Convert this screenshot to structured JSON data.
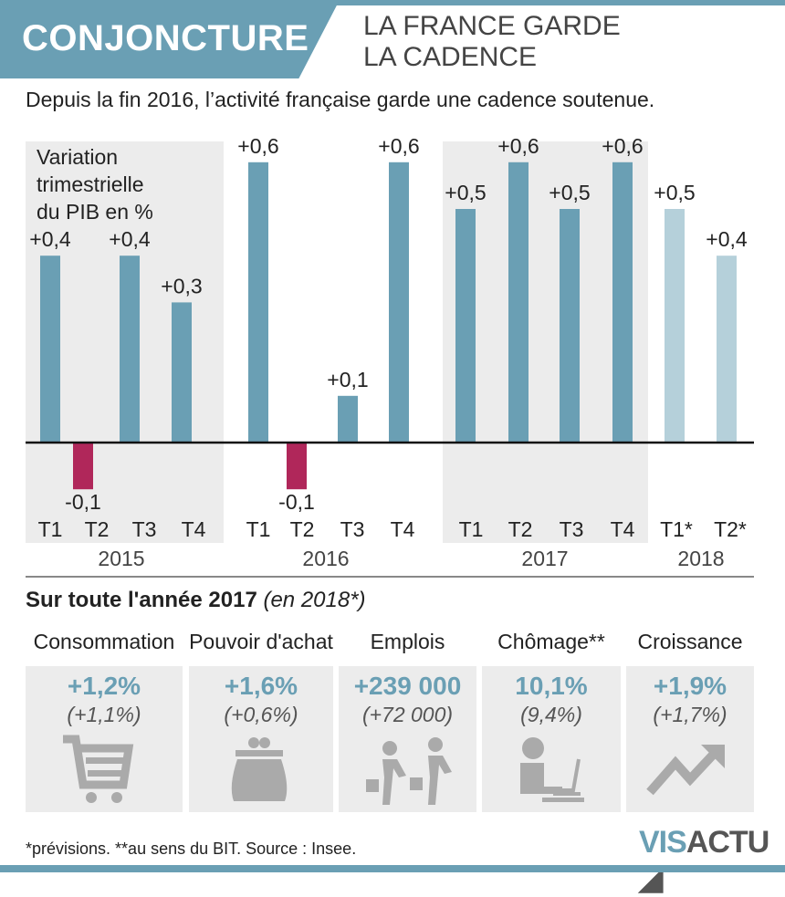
{
  "header": {
    "section": "CONJONCTURE",
    "title_line1": "LA FRANCE GARDE",
    "title_line2": "LA CADENCE",
    "subtitle": "Depuis la fin 2016, l’activité française garde une cadence soutenue."
  },
  "chart_data": {
    "type": "bar",
    "ylabel_lines": [
      "Variation",
      "trimestrielle",
      "du PIB en %"
    ],
    "categories": [
      "T1",
      "T2",
      "T3",
      "T4",
      "T1",
      "T2",
      "T3",
      "T4",
      "T1",
      "T2",
      "T3",
      "T4",
      "T1*",
      "T2*"
    ],
    "years": [
      "2015",
      "2016",
      "2017",
      "2018"
    ],
    "values": [
      0.4,
      -0.1,
      0.4,
      0.3,
      0.6,
      -0.1,
      0.1,
      0.6,
      0.5,
      0.6,
      0.5,
      0.6,
      0.5,
      0.4
    ],
    "data_labels": [
      "+0,4",
      "-0,1",
      "+0,4",
      "+0,3",
      "+0,6",
      "-0,1",
      "+0,1",
      "+0,6",
      "+0,5",
      "+0,6",
      "+0,5",
      "+0,6",
      "+0,5",
      "+0,4"
    ],
    "forecast": [
      false,
      false,
      false,
      false,
      false,
      false,
      false,
      false,
      false,
      false,
      false,
      false,
      true,
      true
    ],
    "colors": {
      "positive": "#6a9fb4",
      "negative": "#b0275a",
      "forecast": "#b5d0da",
      "panel": "#ececec"
    }
  },
  "annual": {
    "title": "Sur toute l'année 2017",
    "title_note": "(en 2018*)",
    "items": [
      {
        "label": "Consommation",
        "value": "+1,2%",
        "value_2018": "(+1,1%)",
        "icon": "shopping-cart-icon"
      },
      {
        "label": "Pouvoir d'achat",
        "value": "+1,6%",
        "value_2018": "(+0,6%)",
        "icon": "purse-icon"
      },
      {
        "label": "Emplois",
        "value": "+239 000",
        "value_2018": "(+72 000)",
        "icon": "walking-workers-icon"
      },
      {
        "label": "Chômage**",
        "value": "10,1%",
        "value_2018": "(9,4%)",
        "icon": "person-laptop-icon"
      },
      {
        "label": "Croissance",
        "value": "+1,9%",
        "value_2018": "(+1,7%)",
        "icon": "trend-up-arrow-icon"
      }
    ]
  },
  "footer": {
    "note": "*prévisions. **au sens du BIT.  Source : Insee.",
    "logo_part1": "VIS",
    "logo_part2": "ACTU"
  }
}
